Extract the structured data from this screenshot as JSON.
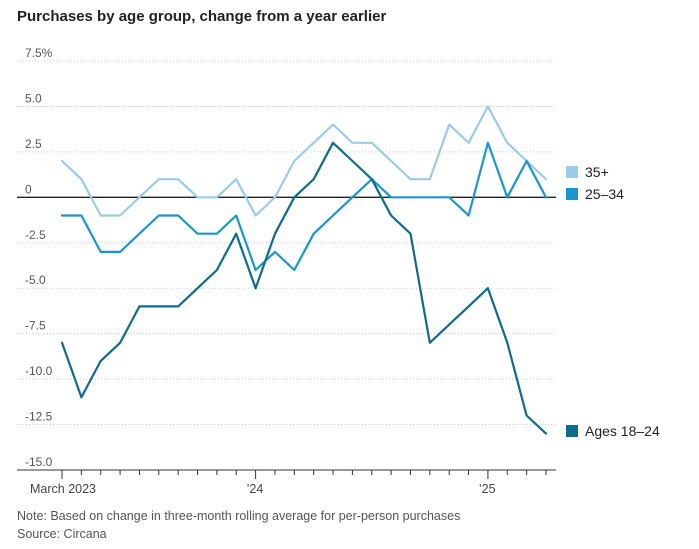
{
  "title": "Purchases by age group, change from a year earlier",
  "note": "Note: Based on change in three-month rolling average for per-person purchases",
  "source": "Source: Circana",
  "chart_data": {
    "type": "line",
    "ylim": [
      -15,
      7.5
    ],
    "y_ticks": [
      7.5,
      5.0,
      2.5,
      0,
      -2.5,
      -5.0,
      -7.5,
      -10.0,
      -12.5,
      -15.0
    ],
    "y_tick_labels": [
      "7.5%",
      "5.0",
      "2.5",
      "0",
      "-2.5",
      "-5.0",
      "-7.5",
      "-10.0",
      "-12.5",
      "-15.0"
    ],
    "x_tick_labels": [
      {
        "index": 0,
        "label": "March 2023"
      },
      {
        "index": 10,
        "label": "’24"
      },
      {
        "index": 22,
        "label": "’25"
      }
    ],
    "months": [
      "2023-03",
      "2023-04",
      "2023-05",
      "2023-06",
      "2023-07",
      "2023-08",
      "2023-09",
      "2023-10",
      "2023-11",
      "2023-12",
      "2024-01",
      "2024-02",
      "2024-03",
      "2024-04",
      "2024-05",
      "2024-06",
      "2024-07",
      "2024-08",
      "2024-09",
      "2024-10",
      "2024-11",
      "2024-12",
      "2025-01",
      "2025-02",
      "2025-03",
      "2025-04"
    ],
    "grid": "horizontal",
    "legend": "right, at line ends",
    "series": [
      {
        "name": "35+",
        "color": "#9ccbe6",
        "values": [
          2,
          1,
          -1,
          -1,
          0,
          1,
          1,
          0,
          0,
          1,
          -1,
          0,
          2,
          3,
          4,
          3,
          3,
          2,
          1,
          1,
          4,
          3,
          5,
          3,
          2,
          1
        ]
      },
      {
        "name": "25–34",
        "color": "#1a96cc",
        "values": [
          -1,
          -1,
          -3,
          -3,
          -2,
          -1,
          -1,
          -2,
          -2,
          -1,
          -4,
          -3,
          -4,
          -2,
          -1,
          0,
          1,
          0,
          0,
          0,
          0,
          -1,
          3,
          0,
          2,
          0
        ]
      },
      {
        "name": "Ages 18–24",
        "color": "#0f6b8c",
        "values": [
          -8,
          -11,
          -9,
          -8,
          -6,
          -6,
          -6,
          -5,
          -4,
          -2,
          -5,
          -2,
          0,
          1,
          3,
          2,
          1,
          -1,
          -2,
          -8,
          -7,
          -6,
          -5,
          -8,
          -12,
          -13
        ]
      }
    ]
  }
}
